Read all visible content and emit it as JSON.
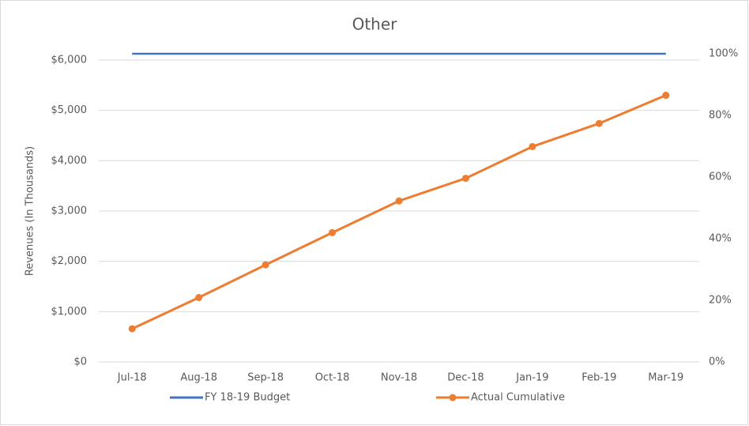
{
  "chart_data": {
    "type": "line",
    "title": "Other",
    "y_label": "Revenues (In Thousands)",
    "categories": [
      "Jul-18",
      "Aug-18",
      "Sep-18",
      "Oct-18",
      "Nov-18",
      "Dec-18",
      "Jan-19",
      "Feb-19",
      "Mar-19"
    ],
    "series": [
      {
        "name": "FY 18-19 Budget",
        "color": "#4472c4",
        "marker": false,
        "values": [
          6125,
          6125,
          6125,
          6125,
          6125,
          6125,
          6125,
          6125,
          6125
        ]
      },
      {
        "name": "Actual Cumulative",
        "color": "#ed7d31",
        "marker": true,
        "values": [
          660,
          1280,
          1930,
          2570,
          3200,
          3650,
          4280,
          4740,
          5300
        ]
      }
    ],
    "ylim": [
      0,
      6125
    ],
    "yticks": [
      {
        "value": 0,
        "label": "$0"
      },
      {
        "value": 1000,
        "label": "$1,000"
      },
      {
        "value": 2000,
        "label": "$2,000"
      },
      {
        "value": 3000,
        "label": "$3,000"
      },
      {
        "value": 4000,
        "label": "$4,000"
      },
      {
        "value": 5000,
        "label": "$5,000"
      },
      {
        "value": 6000,
        "label": "$6,000"
      }
    ],
    "y2lim": [
      0,
      100
    ],
    "y2ticks": [
      {
        "value": 0,
        "label": "0%"
      },
      {
        "value": 20,
        "label": "20%"
      },
      {
        "value": 40,
        "label": "40%"
      },
      {
        "value": 60,
        "label": "60%"
      },
      {
        "value": 80,
        "label": "80%"
      },
      {
        "value": 100,
        "label": "100%"
      }
    ],
    "grid": true,
    "legend": "bottom"
  }
}
